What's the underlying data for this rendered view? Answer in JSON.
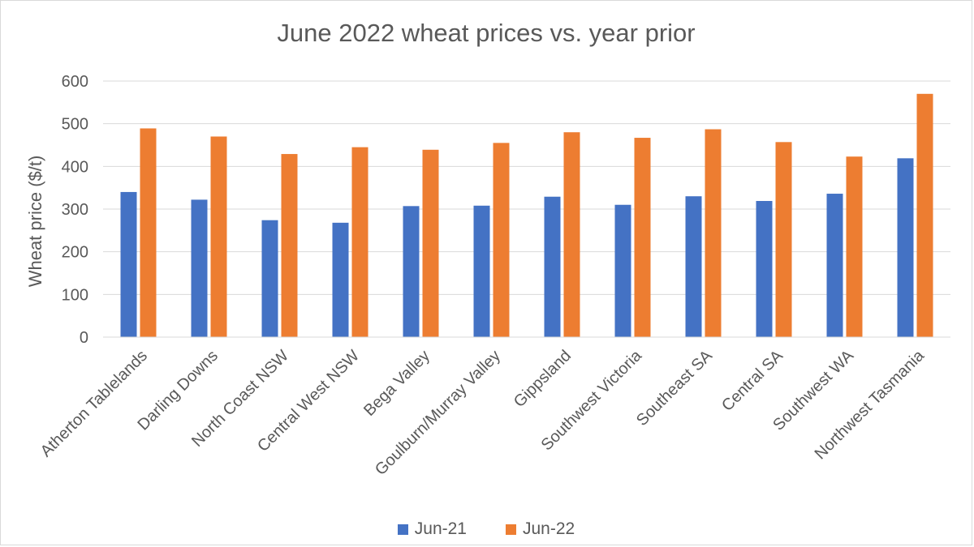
{
  "chart_data": {
    "type": "bar",
    "title": "June 2022 wheat prices vs. year prior",
    "xlabel": "",
    "ylabel": "Wheat price ($/t)",
    "ylim": [
      0,
      600
    ],
    "yticks": [
      0,
      100,
      200,
      300,
      400,
      500,
      600
    ],
    "grid": true,
    "legend_position": "bottom",
    "categories": [
      "Atherton Tablelands",
      "Darling Downs",
      "North Coast NSW",
      "Central West NSW",
      "Bega Valley",
      "Goulburn/Murray Valley",
      "Gippsland",
      "Southwest Victoria",
      "Southeast SA",
      "Central SA",
      "Southwest WA",
      "Northwest Tasmania"
    ],
    "series": [
      {
        "name": "Jun-21",
        "color": "#4472c4",
        "values": [
          340,
          322,
          274,
          268,
          307,
          308,
          329,
          310,
          330,
          319,
          336,
          419
        ]
      },
      {
        "name": "Jun-22",
        "color": "#ed7d31",
        "values": [
          489,
          470,
          429,
          445,
          439,
          455,
          480,
          467,
          487,
          457,
          423,
          570
        ]
      }
    ]
  }
}
